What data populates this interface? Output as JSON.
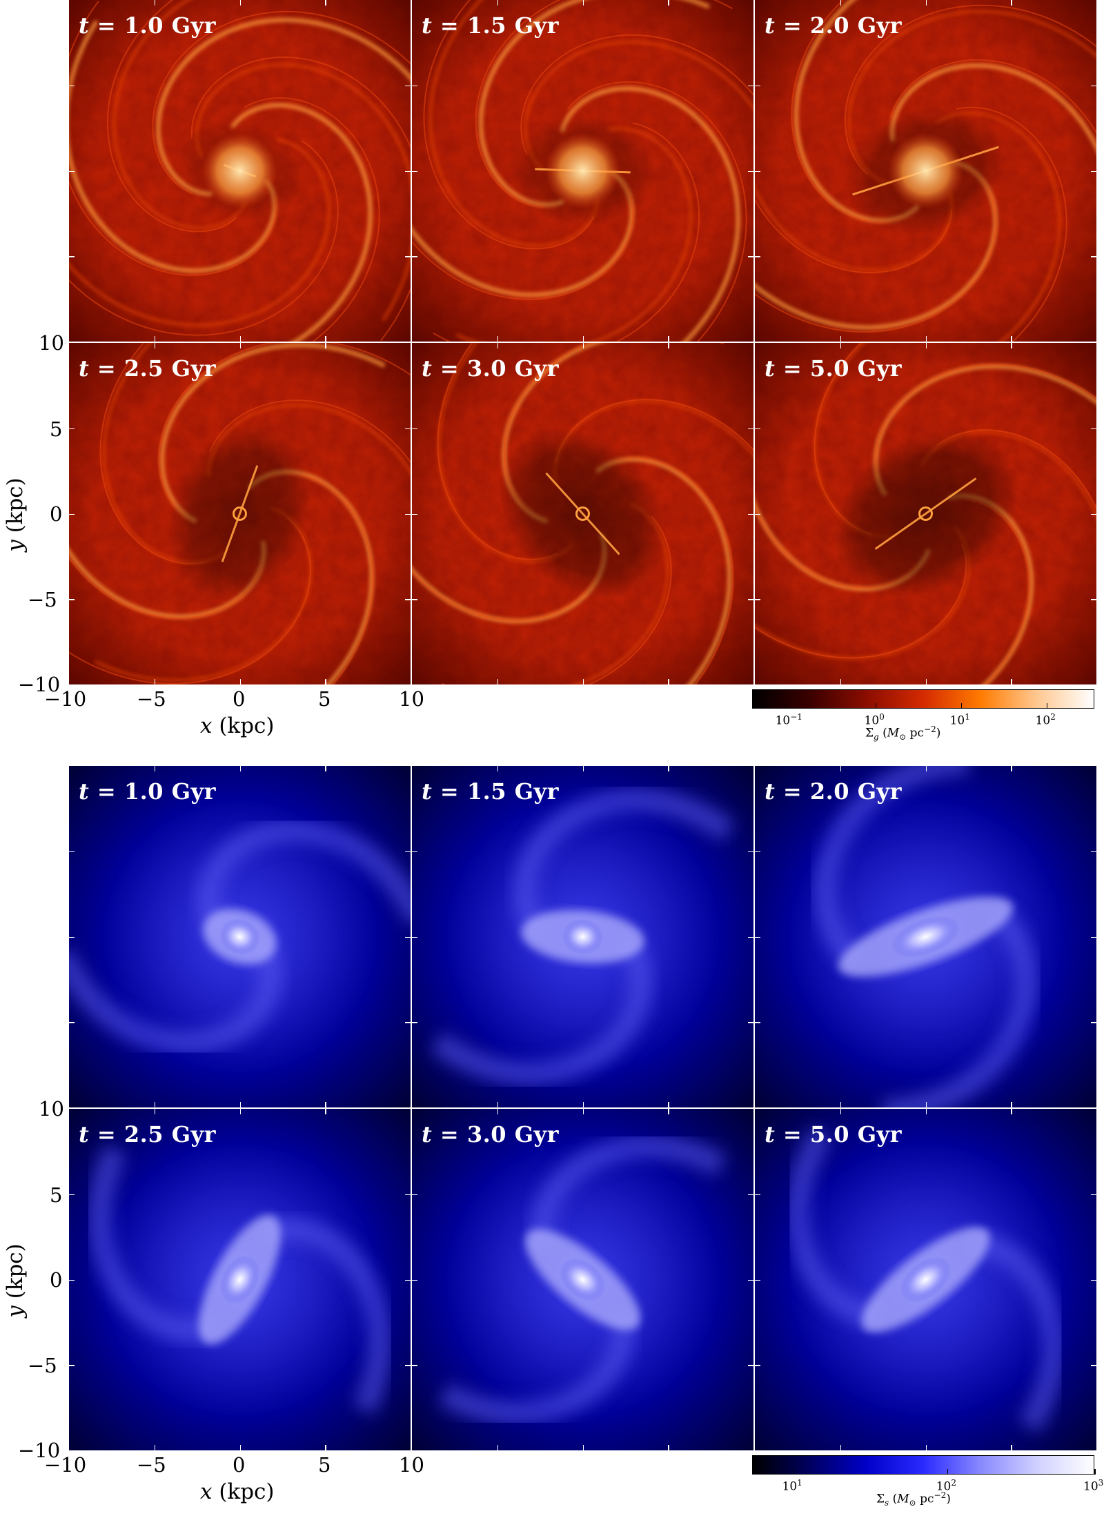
{
  "gas": {
    "panels": [
      {
        "label": "t = 1.0 Gyr",
        "t": "t",
        "rest": " = 1.0 Gyr",
        "bar_angle": 20,
        "bar_len": 0.1,
        "void": 0.25,
        "arm_wind": 1.0,
        "clump": 0.0
      },
      {
        "label": "t = 1.5 Gyr",
        "t": "t",
        "rest": " = 1.5 Gyr",
        "bar_angle": 2,
        "bar_len": 0.28,
        "void": 0.35,
        "arm_wind": 0.9,
        "clump": 0.0
      },
      {
        "label": "t = 2.0 Gyr",
        "t": "t",
        "rest": " = 2.0 Gyr",
        "bar_angle": -18,
        "bar_len": 0.45,
        "void": 0.45,
        "arm_wind": 0.8,
        "clump": 0.0
      },
      {
        "label": "t = 2.5 Gyr",
        "t": "t",
        "rest": " = 2.5 Gyr",
        "bar_angle": -70,
        "bar_len": 0.3,
        "void": 0.55,
        "arm_wind": 0.7,
        "clump": 1.0
      },
      {
        "label": "t = 3.0 Gyr",
        "t": "t",
        "rest": " = 3.0 Gyr",
        "bar_angle": 48,
        "bar_len": 0.32,
        "void": 0.6,
        "arm_wind": 0.65,
        "clump": 1.0
      },
      {
        "label": "t = 5.0 Gyr",
        "t": "t",
        "rest": " = 5.0 Gyr",
        "bar_angle": -35,
        "bar_len": 0.36,
        "void": 0.65,
        "arm_wind": 0.6,
        "clump": 1.0
      }
    ],
    "colorbar": {
      "ticks": [
        {
          "base": "10",
          "exp": "−1",
          "frac": 0.1
        },
        {
          "base": "10",
          "exp": "0",
          "frac": 0.36
        },
        {
          "base": "10",
          "exp": "1",
          "frac": 0.61
        },
        {
          "base": "10",
          "exp": "2",
          "frac": 0.86
        }
      ],
      "label": "Σg (M⊙ pc⁻²)",
      "colors": [
        "#000000",
        "#3a0000",
        "#8b0d00",
        "#d42a00",
        "#ff7a00",
        "#ffc890",
        "#ffffff"
      ]
    },
    "palette": {
      "bg": "#5e0800",
      "mid": "#b81f05",
      "arm": "#e8450f",
      "bright": "#ffa040",
      "core": "#ffe6b0",
      "void": "#1a0000"
    }
  },
  "stars": {
    "panels": [
      {
        "label": "t = 1.0 Gyr",
        "t": "t",
        "rest": " = 1.0 Gyr",
        "bar_angle": 20,
        "bar_len": 0.1,
        "arm_wind": 1.0
      },
      {
        "label": "t = 1.5 Gyr",
        "t": "t",
        "rest": " = 1.5 Gyr",
        "bar_angle": 5,
        "bar_len": 0.24,
        "arm_wind": 0.9
      },
      {
        "label": "t = 2.0 Gyr",
        "t": "t",
        "rest": " = 2.0 Gyr",
        "bar_angle": -20,
        "bar_len": 0.42,
        "arm_wind": 0.8
      },
      {
        "label": "t = 2.5 Gyr",
        "t": "t",
        "rest": " = 2.5 Gyr",
        "bar_angle": -62,
        "bar_len": 0.3,
        "arm_wind": 0.7
      },
      {
        "label": "t = 3.0 Gyr",
        "t": "t",
        "rest": " = 3.0 Gyr",
        "bar_angle": 40,
        "bar_len": 0.3,
        "arm_wind": 0.65
      },
      {
        "label": "t = 5.0 Gyr",
        "t": "t",
        "rest": " = 5.0 Gyr",
        "bar_angle": -38,
        "bar_len": 0.34,
        "arm_wind": 0.6
      }
    ],
    "colorbar": {
      "ticks": [
        {
          "base": "10",
          "exp": "1",
          "frac": 0.12
        },
        {
          "base": "10",
          "exp": "2",
          "frac": 0.57
        },
        {
          "base": "10",
          "exp": "3",
          "frac": 1.0
        }
      ],
      "label": "Σs (M⊙ pc⁻²)",
      "colors": [
        "#000000",
        "#000060",
        "#0000c8",
        "#2a2aff",
        "#8888ff",
        "#d0d0ff",
        "#ffffff"
      ]
    },
    "palette": {
      "bg": "#00009a",
      "mid": "#1a1ad8",
      "arm": "#5a5af0",
      "bright": "#b0b0ff",
      "core": "#ffffff",
      "edge": "#000030"
    }
  },
  "axes": {
    "xlabel_var": "x",
    "xlabel_unit": " (kpc)",
    "ylabel_var": "y",
    "ylabel_unit": " (kpc)",
    "xticks": [
      "−10",
      "−5",
      "0",
      "5",
      "10"
    ],
    "yticks": [
      "10",
      "5",
      "0",
      "−5",
      "−10"
    ]
  }
}
